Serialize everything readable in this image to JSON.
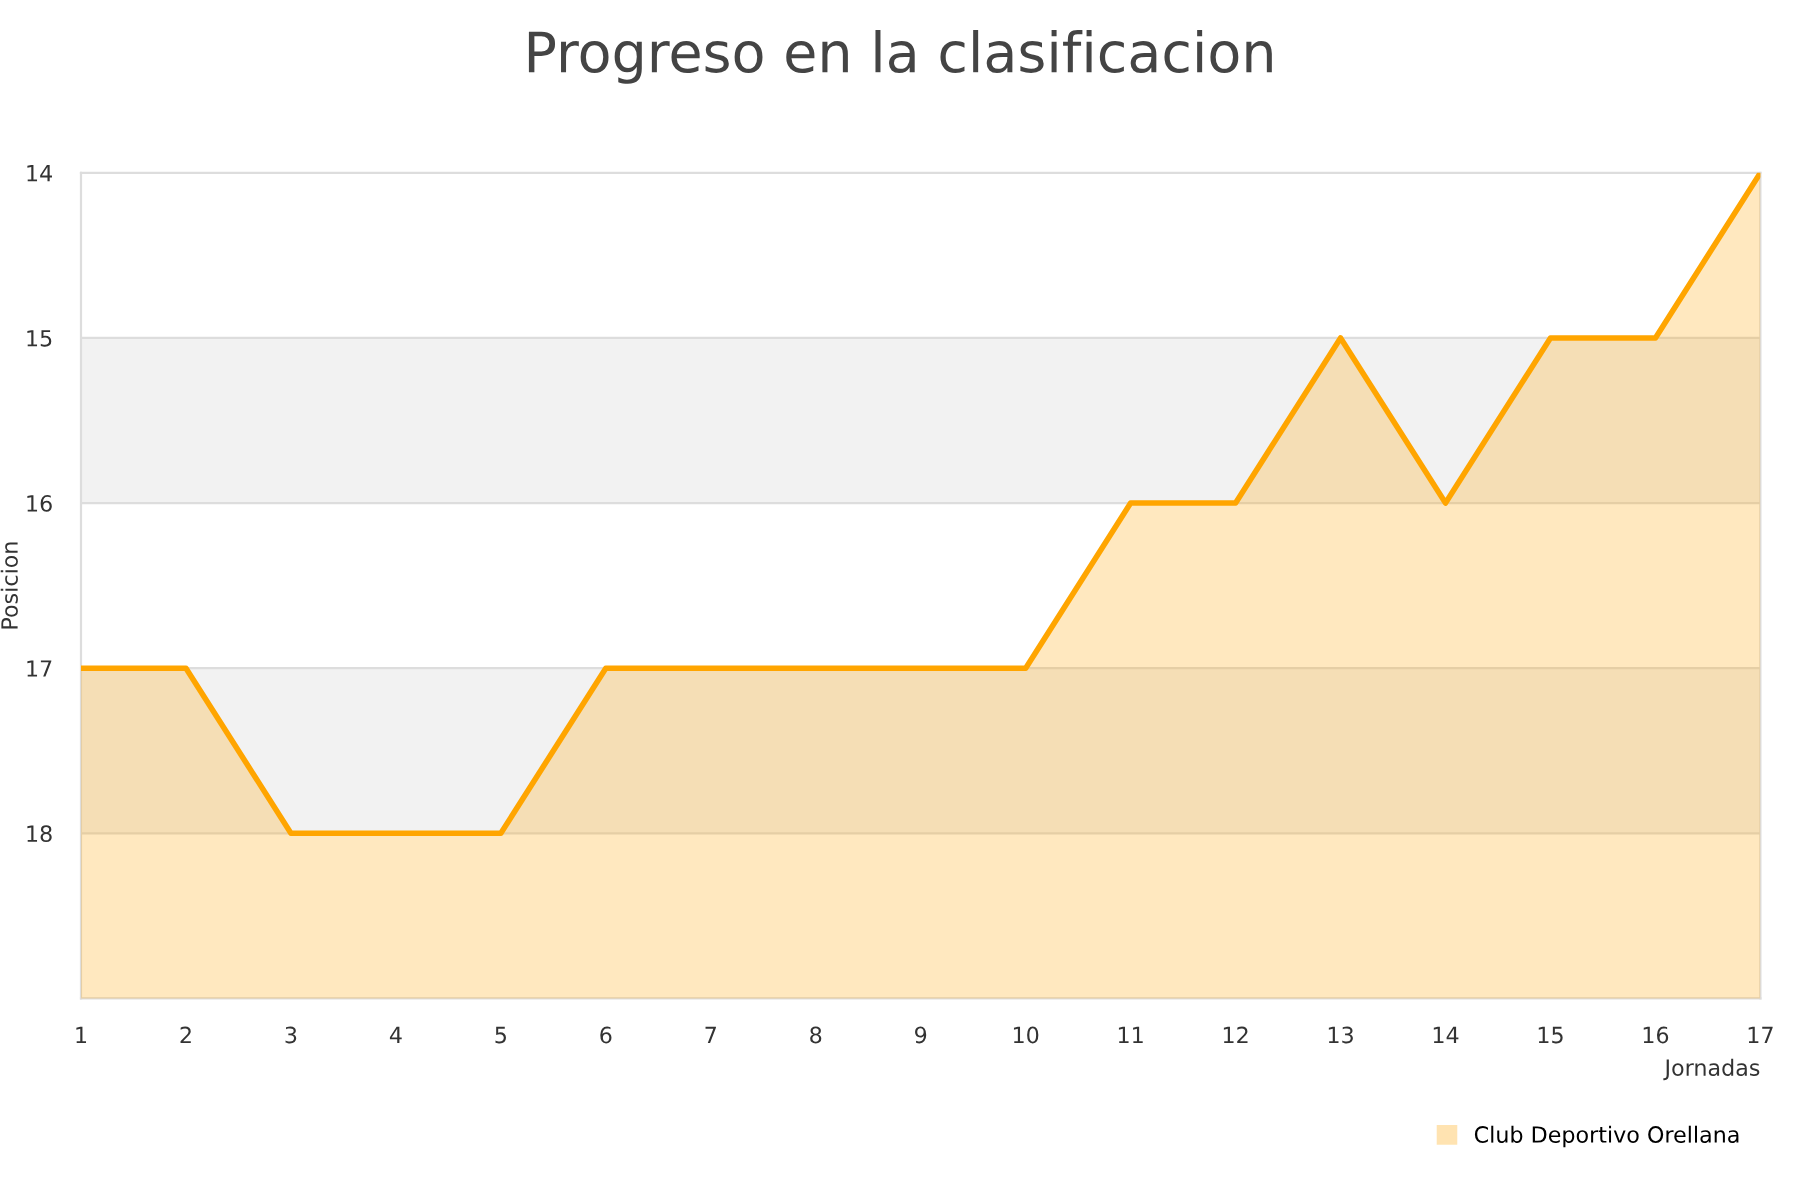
{
  "chart_data": {
    "type": "area",
    "title": "Progreso en la clasificacion",
    "xlabel": "Jornadas",
    "ylabel": "Posicion",
    "x": [
      1,
      2,
      3,
      4,
      5,
      6,
      7,
      8,
      9,
      10,
      11,
      12,
      13,
      14,
      15,
      16,
      17
    ],
    "series": [
      {
        "name": "Club Deportivo Orellana",
        "color": "#ffa500",
        "values": [
          17,
          17,
          18,
          18,
          18,
          17,
          17,
          17,
          17,
          17,
          16,
          16,
          15,
          16,
          15,
          15,
          14
        ]
      }
    ],
    "xlim": [
      1,
      17
    ],
    "xticks": [
      1,
      2,
      3,
      4,
      5,
      6,
      7,
      8,
      9,
      10,
      11,
      12,
      13,
      14,
      15,
      16,
      17
    ],
    "ylim": [
      19,
      14
    ],
    "yticks": [
      14,
      15,
      16,
      17,
      18
    ],
    "bands": [
      {
        "axis": "y",
        "from": 15,
        "to": 16,
        "color": "#f2f2f2"
      },
      {
        "axis": "y",
        "from": 17,
        "to": 18,
        "color": "#f2f2f2"
      }
    ],
    "grid": "y",
    "legend": "bottom right",
    "marker": "none",
    "line_style": "solid"
  }
}
